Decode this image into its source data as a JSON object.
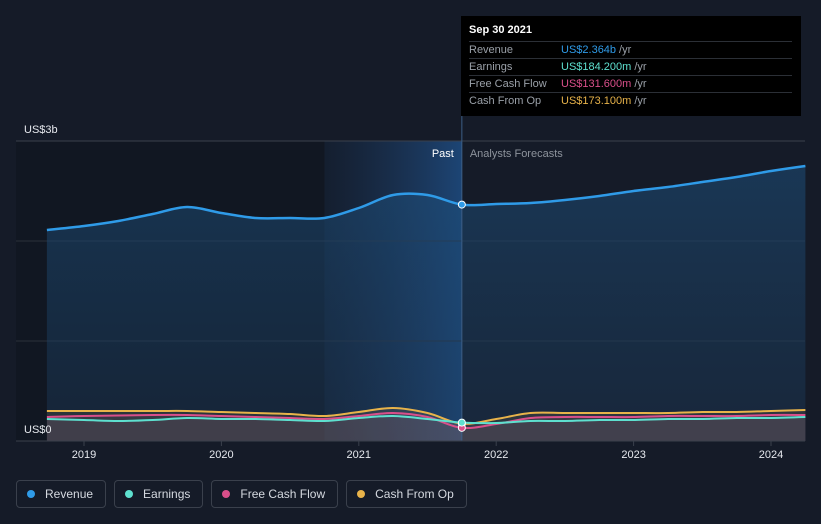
{
  "chart_data": {
    "type": "area",
    "y_unit_top": "US$3b",
    "y_unit_bottom": "US$0",
    "ylim": [
      0,
      3.0
    ],
    "xlim": [
      2018.73,
      2024.25
    ],
    "x_ticks": [
      {
        "value": 2019,
        "label": "2019"
      },
      {
        "value": 2020,
        "label": "2020"
      },
      {
        "value": 2021,
        "label": "2021"
      },
      {
        "value": 2022,
        "label": "2022"
      },
      {
        "value": 2023,
        "label": "2023"
      },
      {
        "value": 2024,
        "label": "2024"
      }
    ],
    "past_label": "Past",
    "forecast_label": "Analysts Forecasts",
    "highlight_start": 2020.75,
    "divider_x": 2021.75,
    "grid": true,
    "series": [
      {
        "name": "Revenue",
        "color": "#2f9be8",
        "points": [
          [
            2018.73,
            2.11
          ],
          [
            2019.0,
            2.15
          ],
          [
            2019.25,
            2.2
          ],
          [
            2019.5,
            2.27
          ],
          [
            2019.75,
            2.34
          ],
          [
            2020.0,
            2.28
          ],
          [
            2020.25,
            2.23
          ],
          [
            2020.5,
            2.23
          ],
          [
            2020.75,
            2.23
          ],
          [
            2021.0,
            2.33
          ],
          [
            2021.25,
            2.46
          ],
          [
            2021.5,
            2.46
          ],
          [
            2021.75,
            2.364
          ],
          [
            2022.0,
            2.37
          ],
          [
            2022.25,
            2.38
          ],
          [
            2022.5,
            2.41
          ],
          [
            2022.75,
            2.45
          ],
          [
            2023.0,
            2.5
          ],
          [
            2023.25,
            2.54
          ],
          [
            2023.5,
            2.59
          ],
          [
            2023.75,
            2.64
          ],
          [
            2024.0,
            2.7
          ],
          [
            2024.25,
            2.75
          ]
        ]
      },
      {
        "name": "Cash From Op",
        "color": "#e8b34a",
        "points": [
          [
            2018.73,
            0.3
          ],
          [
            2019.0,
            0.3
          ],
          [
            2019.5,
            0.3
          ],
          [
            2019.75,
            0.3
          ],
          [
            2020.0,
            0.29
          ],
          [
            2020.25,
            0.28
          ],
          [
            2020.5,
            0.27
          ],
          [
            2020.75,
            0.25
          ],
          [
            2021.0,
            0.29
          ],
          [
            2021.25,
            0.33
          ],
          [
            2021.5,
            0.28
          ],
          [
            2021.75,
            0.1731
          ],
          [
            2022.0,
            0.22
          ],
          [
            2022.25,
            0.28
          ],
          [
            2022.5,
            0.28
          ],
          [
            2022.75,
            0.28
          ],
          [
            2023.0,
            0.28
          ],
          [
            2023.25,
            0.28
          ],
          [
            2023.5,
            0.29
          ],
          [
            2023.75,
            0.29
          ],
          [
            2024.0,
            0.3
          ],
          [
            2024.25,
            0.31
          ]
        ]
      },
      {
        "name": "Free Cash Flow",
        "color": "#d94f8a",
        "points": [
          [
            2018.73,
            0.24
          ],
          [
            2019.0,
            0.25
          ],
          [
            2019.5,
            0.26
          ],
          [
            2019.75,
            0.26
          ],
          [
            2020.0,
            0.25
          ],
          [
            2020.25,
            0.24
          ],
          [
            2020.5,
            0.23
          ],
          [
            2020.75,
            0.22
          ],
          [
            2021.0,
            0.25
          ],
          [
            2021.25,
            0.28
          ],
          [
            2021.5,
            0.24
          ],
          [
            2021.75,
            0.1316
          ],
          [
            2022.0,
            0.17
          ],
          [
            2022.25,
            0.23
          ],
          [
            2022.5,
            0.24
          ],
          [
            2022.75,
            0.24
          ],
          [
            2023.0,
            0.24
          ],
          [
            2023.25,
            0.25
          ],
          [
            2023.5,
            0.25
          ],
          [
            2023.75,
            0.25
          ],
          [
            2024.0,
            0.26
          ],
          [
            2024.25,
            0.26
          ]
        ]
      },
      {
        "name": "Earnings",
        "color": "#5ee0cf",
        "points": [
          [
            2018.73,
            0.22
          ],
          [
            2019.0,
            0.21
          ],
          [
            2019.25,
            0.2
          ],
          [
            2019.5,
            0.21
          ],
          [
            2019.75,
            0.23
          ],
          [
            2020.0,
            0.22
          ],
          [
            2020.25,
            0.22
          ],
          [
            2020.5,
            0.21
          ],
          [
            2020.75,
            0.2
          ],
          [
            2021.0,
            0.23
          ],
          [
            2021.25,
            0.25
          ],
          [
            2021.5,
            0.22
          ],
          [
            2021.75,
            0.1842
          ],
          [
            2022.0,
            0.18
          ],
          [
            2022.25,
            0.2
          ],
          [
            2022.5,
            0.2
          ],
          [
            2022.75,
            0.21
          ],
          [
            2023.0,
            0.21
          ],
          [
            2023.25,
            0.22
          ],
          [
            2023.5,
            0.22
          ],
          [
            2023.75,
            0.23
          ],
          [
            2024.0,
            0.23
          ],
          [
            2024.25,
            0.24
          ]
        ]
      }
    ]
  },
  "tooltip": {
    "date": "Sep 30 2021",
    "rows": [
      {
        "label": "Revenue",
        "value": "US$2.364b",
        "unit": "/yr",
        "color": "#2f9be8"
      },
      {
        "label": "Earnings",
        "value": "US$184.200m",
        "unit": "/yr",
        "color": "#5ee0cf"
      },
      {
        "label": "Free Cash Flow",
        "value": "US$131.600m",
        "unit": "/yr",
        "color": "#d94f8a"
      },
      {
        "label": "Cash From Op",
        "value": "US$173.100m",
        "unit": "/yr",
        "color": "#e8b34a"
      }
    ]
  },
  "legend": [
    {
      "label": "Revenue",
      "color": "#2f9be8"
    },
    {
      "label": "Earnings",
      "color": "#5ee0cf"
    },
    {
      "label": "Free Cash Flow",
      "color": "#d94f8a"
    },
    {
      "label": "Cash From Op",
      "color": "#e8b34a"
    }
  ]
}
